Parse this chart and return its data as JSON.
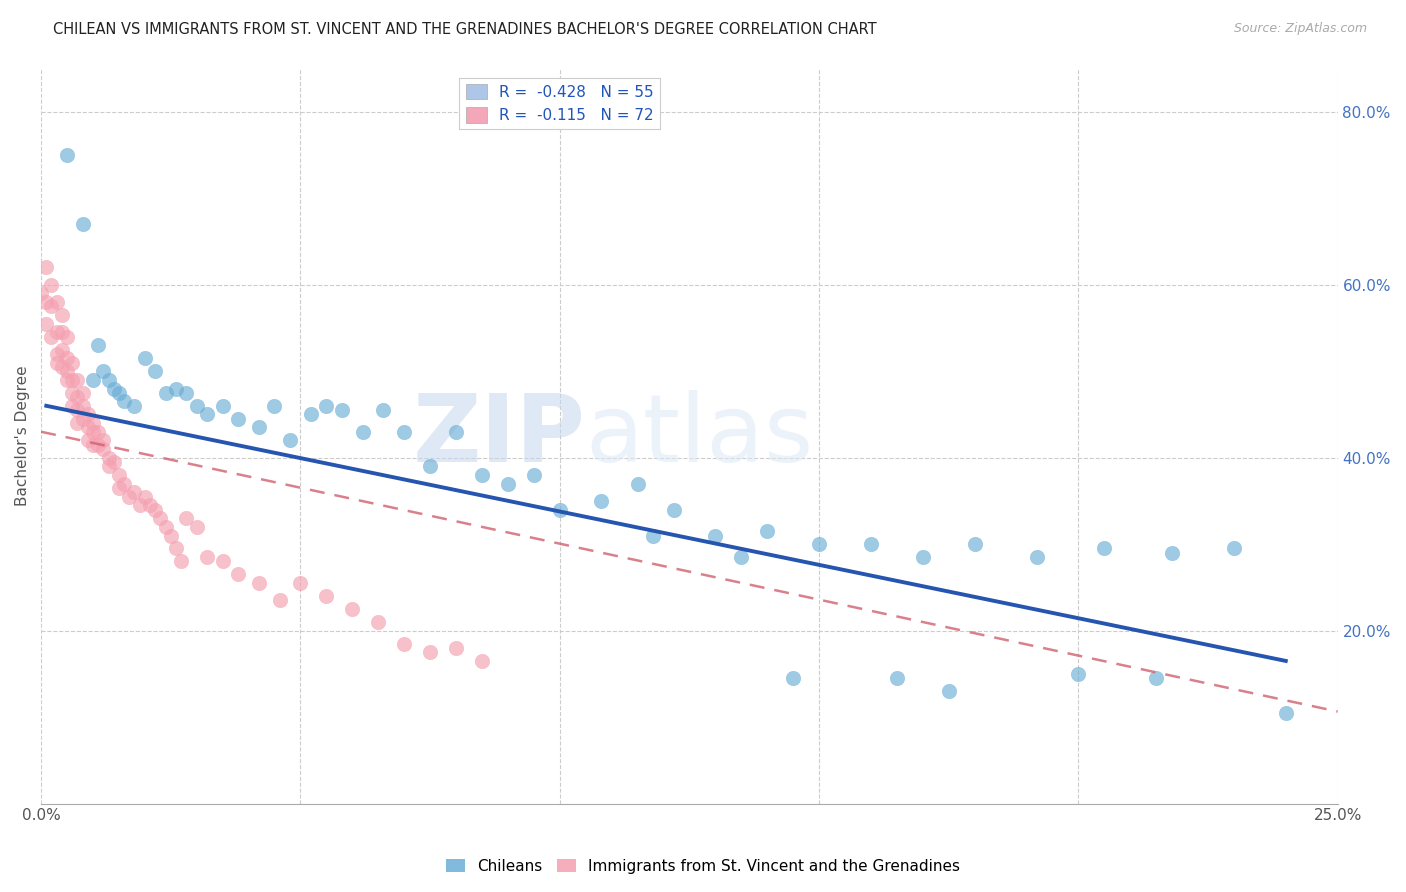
{
  "title": "CHILEAN VS IMMIGRANTS FROM ST. VINCENT AND THE GRENADINES BACHELOR'S DEGREE CORRELATION CHART",
  "source": "Source: ZipAtlas.com",
  "ylabel": "Bachelor's Degree",
  "ylabel_right_ticks": [
    "80.0%",
    "60.0%",
    "40.0%",
    "20.0%"
  ],
  "ylabel_right_vals": [
    0.8,
    0.6,
    0.4,
    0.2
  ],
  "legend_entry1": {
    "label": "R =  -0.428   N = 55",
    "color": "#aec6e8"
  },
  "legend_entry2": {
    "label": "R =  -0.115   N = 72",
    "color": "#f4a7b9"
  },
  "chilean_color": "#6baed6",
  "immigrant_color": "#f4a0b0",
  "trendline_chilean_color": "#2655b0",
  "trendline_immigrant_color": "#d06070",
  "background_color": "#ffffff",
  "watermark_zip": "ZIP",
  "watermark_atlas": "atlas",
  "chileans_x": [
    0.005,
    0.008,
    0.01,
    0.011,
    0.012,
    0.013,
    0.014,
    0.015,
    0.016,
    0.018,
    0.02,
    0.022,
    0.024,
    0.026,
    0.028,
    0.03,
    0.032,
    0.035,
    0.038,
    0.042,
    0.045,
    0.048,
    0.052,
    0.055,
    0.058,
    0.062,
    0.066,
    0.07,
    0.075,
    0.08,
    0.085,
    0.09,
    0.095,
    0.1,
    0.108,
    0.115,
    0.122,
    0.13,
    0.14,
    0.15,
    0.16,
    0.17,
    0.18,
    0.192,
    0.205,
    0.218,
    0.23,
    0.118,
    0.135,
    0.145,
    0.165,
    0.2,
    0.215,
    0.175,
    0.24
  ],
  "chileans_y": [
    0.75,
    0.67,
    0.49,
    0.53,
    0.5,
    0.49,
    0.48,
    0.475,
    0.465,
    0.46,
    0.515,
    0.5,
    0.475,
    0.48,
    0.475,
    0.46,
    0.45,
    0.46,
    0.445,
    0.435,
    0.46,
    0.42,
    0.45,
    0.46,
    0.455,
    0.43,
    0.455,
    0.43,
    0.39,
    0.43,
    0.38,
    0.37,
    0.38,
    0.34,
    0.35,
    0.37,
    0.34,
    0.31,
    0.315,
    0.3,
    0.3,
    0.285,
    0.3,
    0.285,
    0.295,
    0.29,
    0.295,
    0.31,
    0.285,
    0.145,
    0.145,
    0.15,
    0.145,
    0.13,
    0.105
  ],
  "immigrants_x": [
    0.0,
    0.001,
    0.001,
    0.001,
    0.002,
    0.002,
    0.002,
    0.003,
    0.003,
    0.003,
    0.003,
    0.004,
    0.004,
    0.004,
    0.004,
    0.005,
    0.005,
    0.005,
    0.005,
    0.006,
    0.006,
    0.006,
    0.006,
    0.007,
    0.007,
    0.007,
    0.007,
    0.008,
    0.008,
    0.008,
    0.009,
    0.009,
    0.009,
    0.01,
    0.01,
    0.01,
    0.011,
    0.011,
    0.012,
    0.012,
    0.013,
    0.013,
    0.014,
    0.015,
    0.015,
    0.016,
    0.017,
    0.018,
    0.019,
    0.02,
    0.021,
    0.022,
    0.023,
    0.024,
    0.025,
    0.026,
    0.027,
    0.028,
    0.03,
    0.032,
    0.035,
    0.038,
    0.042,
    0.046,
    0.05,
    0.055,
    0.06,
    0.065,
    0.07,
    0.075,
    0.08,
    0.085
  ],
  "immigrants_y": [
    0.59,
    0.62,
    0.58,
    0.555,
    0.6,
    0.575,
    0.54,
    0.58,
    0.545,
    0.52,
    0.51,
    0.565,
    0.545,
    0.525,
    0.505,
    0.54,
    0.515,
    0.5,
    0.49,
    0.51,
    0.49,
    0.475,
    0.46,
    0.49,
    0.47,
    0.455,
    0.44,
    0.475,
    0.46,
    0.445,
    0.45,
    0.435,
    0.42,
    0.44,
    0.43,
    0.415,
    0.43,
    0.415,
    0.42,
    0.41,
    0.4,
    0.39,
    0.395,
    0.38,
    0.365,
    0.37,
    0.355,
    0.36,
    0.345,
    0.355,
    0.345,
    0.34,
    0.33,
    0.32,
    0.31,
    0.295,
    0.28,
    0.33,
    0.32,
    0.285,
    0.28,
    0.265,
    0.255,
    0.235,
    0.255,
    0.24,
    0.225,
    0.21,
    0.185,
    0.175,
    0.18,
    0.165
  ],
  "xlim": [
    0.0,
    0.25
  ],
  "ylim": [
    0.0,
    0.85
  ],
  "xgrid_lines": [
    0.0,
    0.05,
    0.1,
    0.15,
    0.2,
    0.25
  ],
  "ygrid_lines": [
    0.2,
    0.4,
    0.6,
    0.8
  ],
  "chilean_trend_x": [
    0.001,
    0.24
  ],
  "chilean_trend_y": [
    0.46,
    0.165
  ],
  "immigrant_trend_x": [
    0.0,
    0.085
  ],
  "immigrant_trend_y": [
    0.43,
    0.32
  ]
}
